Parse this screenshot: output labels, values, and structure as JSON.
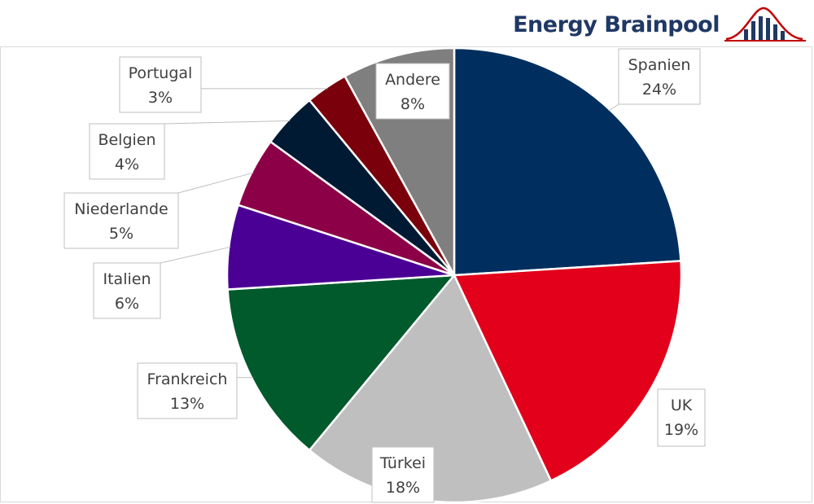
{
  "logo": {
    "text": "Energy Brainpool",
    "text_color": "#1f3864",
    "mark_color": "#c00000",
    "icon": "bell-curve-bars-icon"
  },
  "chart_data": {
    "type": "pie",
    "title": "",
    "slices": [
      {
        "name": "Spanien",
        "value": 24,
        "label": "24%",
        "color": "#002f5f"
      },
      {
        "name": "UK",
        "value": 19,
        "label": "19%",
        "color": "#e2001a"
      },
      {
        "name": "Türkei",
        "value": 18,
        "label": "18%",
        "color": "#bfbfbf"
      },
      {
        "name": "Frankreich",
        "value": 13,
        "label": "13%",
        "color": "#005a2b"
      },
      {
        "name": "Italien",
        "value": 6,
        "label": "6%",
        "color": "#4b0095"
      },
      {
        "name": "Niederlande",
        "value": 5,
        "label": "5%",
        "color": "#8c0047"
      },
      {
        "name": "Belgien",
        "value": 4,
        "label": "4%",
        "color": "#001a33"
      },
      {
        "name": "Portugal",
        "value": 3,
        "label": "3%",
        "color": "#7a000c"
      },
      {
        "name": "Andere",
        "value": 8,
        "label": "8%",
        "color": "#7f7f7f"
      }
    ],
    "start_angle": "12 o'clock",
    "direction": "clockwise",
    "legend": "none",
    "data_labels": "category and percent in callout boxes"
  }
}
